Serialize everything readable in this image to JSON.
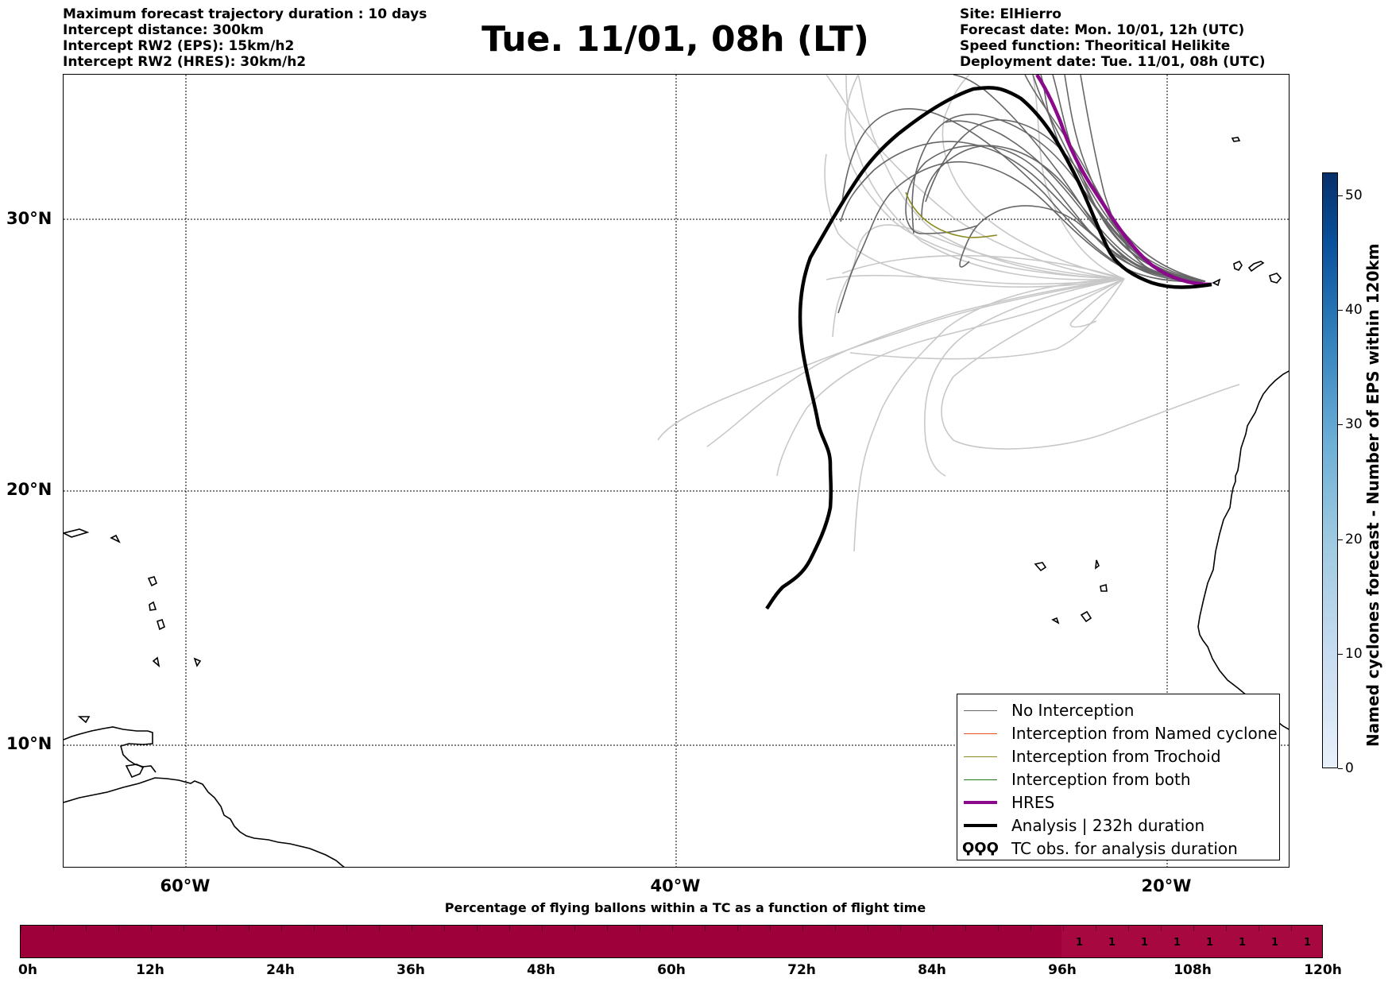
{
  "header_left": [
    "Maximum forecast trajectory duration : 10 days",
    "Intercept distance: 300km",
    "Intercept RW2 (EPS):  15km/h2",
    "Intercept RW2 (HRES): 30km/h2"
  ],
  "header_right": [
    "Site: ElHierro",
    "Forecast date: Mon. 10/01, 12h (UTC)",
    "Speed function: Theoritical Helikite",
    "Deployment date: Tue. 11/01, 08h (UTC)"
  ],
  "title": "Tue. 11/01, 08h (LT)",
  "map": {
    "lat_labels": [
      "30°N",
      "20°N",
      "10°N"
    ],
    "lon_labels": [
      "60°W",
      "40°W",
      "20°W"
    ],
    "lat_values": [
      30,
      20,
      10
    ],
    "lon_values": [
      -60,
      -40,
      -20
    ],
    "extent": {
      "lon_min": -65,
      "lon_max": -15,
      "lat_min": 5.3,
      "lat_max": 35.3
    },
    "colors": {
      "no_interception": "#666666",
      "eps_faded": "#c8c8c8",
      "named_cyclone": "#e8501e",
      "trochoid": "#8b8a1e",
      "both": "#1e7a1e",
      "hres": "#8b0a8b",
      "analysis": "#000000"
    },
    "launch_site": {
      "lon": -18.0,
      "lat": 27.7
    }
  },
  "legend": [
    {
      "label": "No Interception",
      "style": "thin-gray"
    },
    {
      "label": "Interception from Named cyclone",
      "style": "thin-orange"
    },
    {
      "label": "Interception from Trochoid",
      "style": "thin-olive"
    },
    {
      "label": "Interception from both",
      "style": "thin-green"
    },
    {
      "label": "HRES",
      "style": "thick-purple"
    },
    {
      "label": "Analysis | 232h duration",
      "style": "thick-black"
    },
    {
      "label": "TC obs. for analysis duration",
      "style": "tc-symbols"
    }
  ],
  "legend_symbol": "ϘϘϘ",
  "colorbar": {
    "label": "Named cyclones forecast - Number of EPS within 120km",
    "ticks": [
      "0",
      "10",
      "20",
      "30",
      "40",
      "50"
    ],
    "tick_values": [
      0,
      10,
      20,
      30,
      40,
      50
    ],
    "max": 52
  },
  "bottom": {
    "title": "Percentage of flying ballons within a TC as a function of flight time",
    "time_labels": [
      "0h",
      "12h",
      "24h",
      "36h",
      "48h",
      "60h",
      "72h",
      "84h",
      "96h",
      "108h",
      "120h"
    ],
    "time_values": [
      0,
      12,
      24,
      36,
      48,
      60,
      72,
      84,
      96,
      108,
      120
    ],
    "cell_hours": 3,
    "percent_values": [
      {
        "start_h": 96,
        "value": "1"
      },
      {
        "start_h": 99,
        "value": "1"
      },
      {
        "start_h": 102,
        "value": "1"
      },
      {
        "start_h": 105,
        "value": "1"
      },
      {
        "start_h": 108,
        "value": "1"
      },
      {
        "start_h": 111,
        "value": "1"
      },
      {
        "start_h": 114,
        "value": "1"
      },
      {
        "start_h": 117,
        "value": "1"
      }
    ]
  }
}
